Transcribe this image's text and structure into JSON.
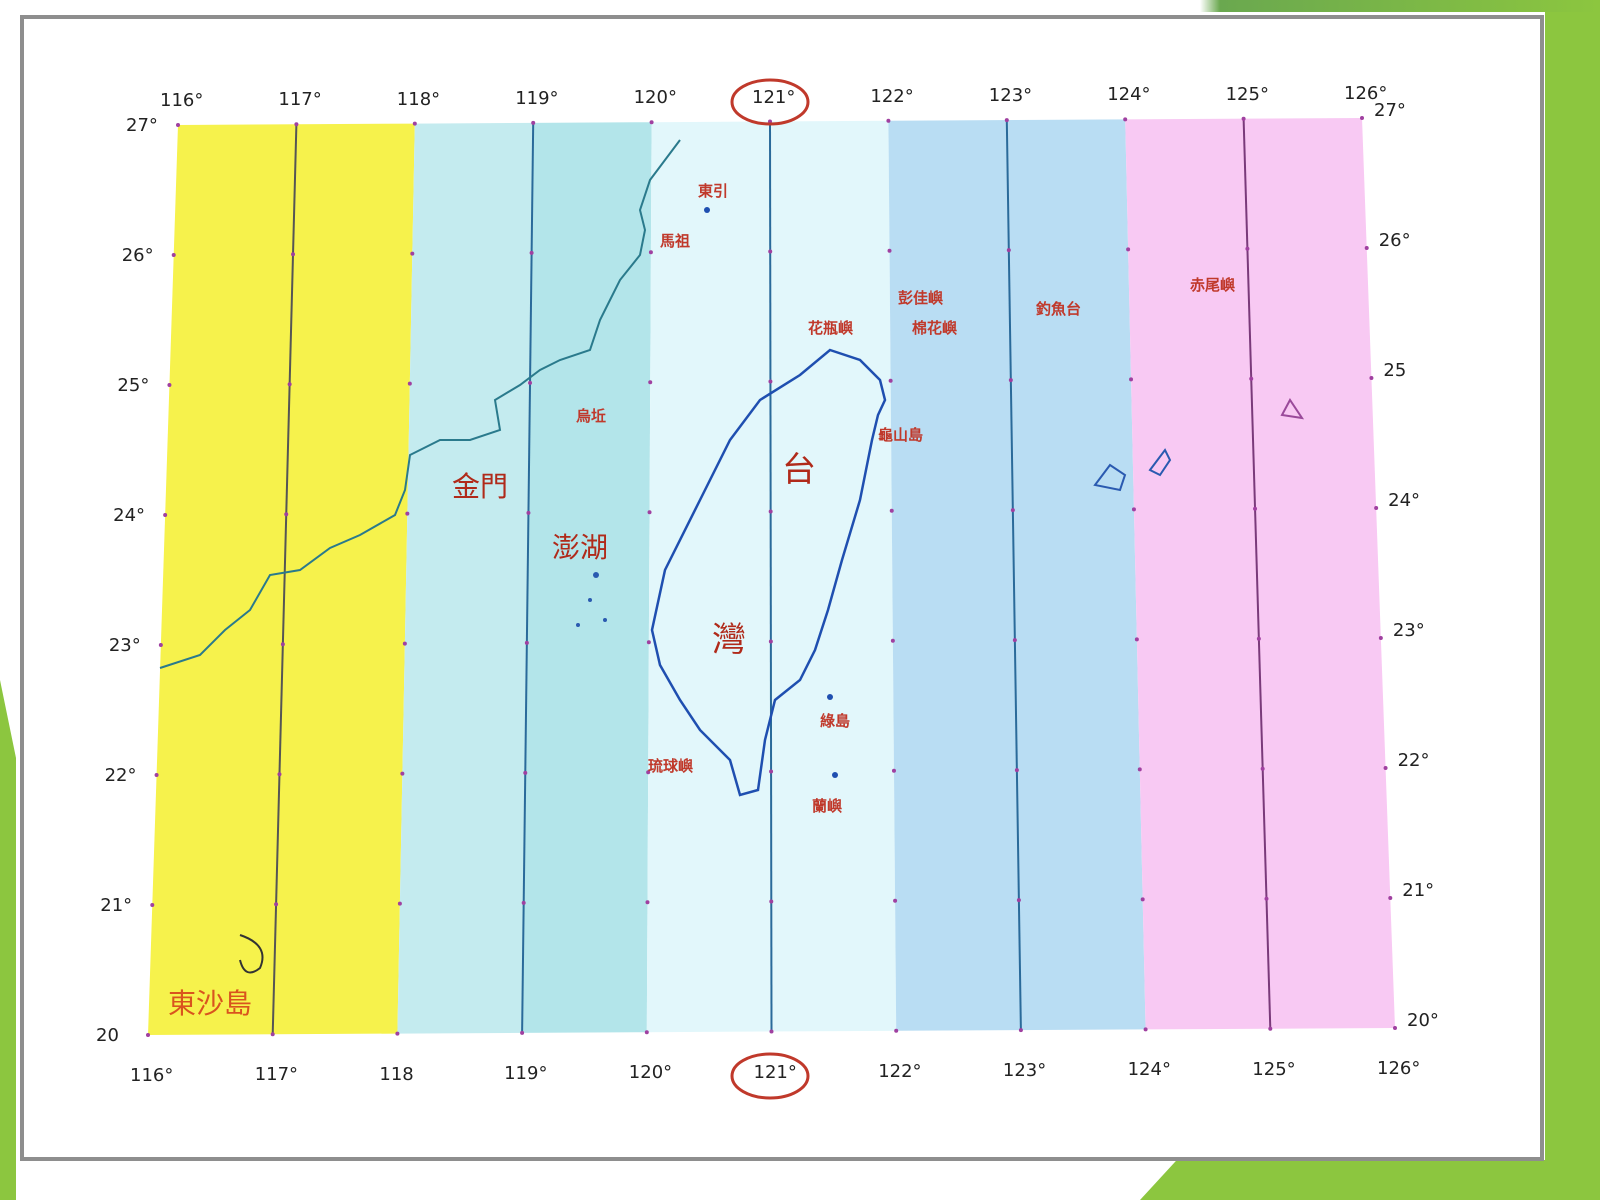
{
  "colors": {
    "zone_116_118": "#f6f24c",
    "zone_118_119": "#c4ebef",
    "zone_119_120": "#b3e5ea",
    "zone_120_122": "#e2f7fb",
    "zone_122_124": "#b9ddf3",
    "zone_124_126": "#f8c9f3",
    "frame_green": "#8cc63f",
    "highlight": "#c0392b"
  },
  "top_ticks": [
    "116°",
    "117°",
    "118°",
    "119°",
    "120°",
    "121°",
    "122°",
    "123°",
    "124°",
    "125°",
    "126°"
  ],
  "bottom_ticks": [
    "116°",
    "117°",
    "118",
    "119°",
    "120°",
    "121°",
    "122°",
    "123°",
    "124°",
    "125°",
    "126°"
  ],
  "left_ticks": [
    "27°",
    "26°",
    "25°",
    "24°",
    "23°",
    "22°",
    "21°",
    "20"
  ],
  "right_ticks": [
    "27°",
    "26°",
    "25",
    "24°",
    "23°",
    "22°",
    "21°",
    "20°"
  ],
  "highlighted_meridian": "121°",
  "places": {
    "dongyin": "東引",
    "matsu": "馬祖",
    "wuqiu": "烏坵",
    "kinmen": "金門",
    "penghu": "澎湖",
    "taiwan_1": "台",
    "taiwan_2": "灣",
    "pengjia": "彭佳嶼",
    "mianhua": "棉花嶼",
    "huaping": "花瓶嶼",
    "diaoyu": "釣魚台",
    "chiwei": "赤尾嶼",
    "guishan": "龜山島",
    "ludao": "綠島",
    "lanyu": "蘭嶼",
    "liuqiu": "琉球嶼",
    "dongsha": "東沙島"
  }
}
